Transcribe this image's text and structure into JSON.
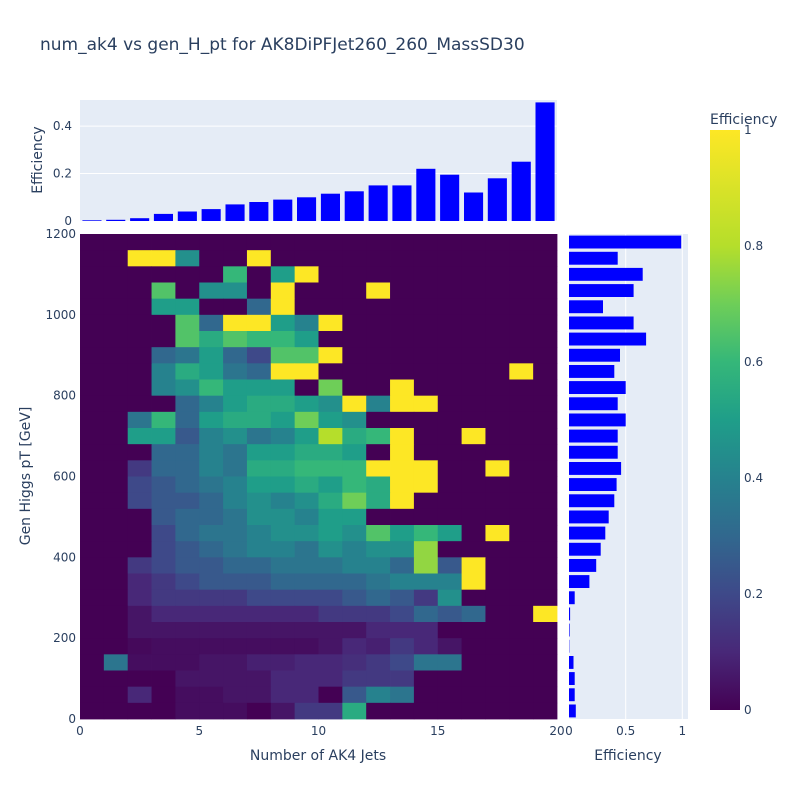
{
  "chart_data": [
    {
      "type": "heatmap",
      "title": "num_ak4 vs gen_H_pt for AK8DiPFJet260_260_MassSD30",
      "xlabel": "Number of AK4 Jets",
      "ylabel": "Gen Higgs pT [GeV]",
      "x_ticks": [
        "0",
        "5",
        "10",
        "15",
        "20"
      ],
      "y_ticks": [
        "0",
        "200",
        "400",
        "600",
        "800",
        "1000",
        "1200"
      ],
      "x_range": [
        0,
        20
      ],
      "y_range": [
        0,
        1200
      ],
      "colorscale": "Viridis",
      "colorbar": {
        "title": "Efficiency",
        "ticks": [
          "0",
          "0.2",
          "0.4",
          "0.6",
          "0.8",
          "1"
        ],
        "range": [
          0,
          1
        ]
      },
      "x_bin_edges": [
        0,
        20
      ],
      "x_bins": 20,
      "y_bin_edges": [
        0,
        1200
      ],
      "y_bins": 30,
      "z_rows_from_top": [
        [
          0,
          0,
          0,
          0,
          0,
          0,
          0,
          0,
          0,
          0,
          0,
          0,
          0,
          0,
          0,
          0,
          0,
          0,
          0,
          0
        ],
        [
          0,
          0,
          1,
          1,
          0.45,
          0,
          0,
          1,
          0,
          0,
          0,
          0,
          0,
          0,
          0,
          0,
          0,
          0,
          0,
          0
        ],
        [
          0,
          0,
          0,
          0,
          0,
          0,
          0.6,
          0,
          0.5,
          1,
          0,
          0,
          0,
          0,
          0,
          0,
          0,
          0,
          0,
          0
        ],
        [
          0,
          0,
          0,
          0.65,
          0,
          0.45,
          0.45,
          0,
          1,
          0,
          0,
          0,
          1,
          0,
          0,
          0,
          0,
          0,
          0,
          0
        ],
        [
          0,
          0,
          0,
          0.5,
          0.5,
          0,
          0,
          0.3,
          1,
          0,
          0,
          0,
          0,
          0,
          0,
          0,
          0,
          0,
          0,
          0
        ],
        [
          0,
          0,
          0,
          0,
          0.65,
          0.3,
          1,
          1,
          0.5,
          0.4,
          1,
          0,
          0,
          0,
          0,
          0,
          0,
          0,
          0,
          0
        ],
        [
          0,
          0,
          0,
          0,
          0.65,
          0.55,
          0.65,
          0.6,
          0.6,
          0.5,
          0,
          0,
          0,
          0,
          0,
          0,
          0,
          0,
          0,
          0
        ],
        [
          0,
          0,
          0,
          0.3,
          0.35,
          0.5,
          0.3,
          0.2,
          0.65,
          0.65,
          1,
          0,
          0,
          0,
          0,
          0,
          0,
          0,
          0,
          0
        ],
        [
          0,
          0,
          0,
          0.4,
          0.55,
          0.5,
          0.35,
          0.3,
          1,
          1,
          0,
          0,
          0,
          0,
          0,
          0,
          0,
          0,
          1,
          0
        ],
        [
          0,
          0,
          0,
          0.4,
          0.45,
          0.6,
          0.5,
          0.5,
          0.5,
          0,
          0.7,
          0,
          0,
          1,
          0,
          0,
          0,
          0,
          0,
          0
        ],
        [
          0,
          0,
          0,
          0,
          0.3,
          0.4,
          0.5,
          0.55,
          0.55,
          0.5,
          0.45,
          1,
          0.4,
          1,
          1,
          0,
          0,
          0,
          0,
          0
        ],
        [
          0,
          0,
          0.35,
          0.6,
          0.3,
          0.5,
          0.55,
          0.55,
          0.5,
          0.7,
          0.5,
          0.45,
          0,
          0,
          0,
          0,
          0,
          0,
          0,
          0
        ],
        [
          0,
          0,
          0.5,
          0.5,
          0.25,
          0.4,
          0.45,
          0.35,
          0.4,
          0.5,
          0.8,
          0.55,
          0.6,
          1,
          0,
          0,
          1,
          0,
          0,
          0
        ],
        [
          0,
          0,
          0,
          0.3,
          0.3,
          0.4,
          0.35,
          0.5,
          0.5,
          0.55,
          0.55,
          0.5,
          0,
          1,
          0,
          0,
          0,
          0,
          0,
          0
        ],
        [
          0,
          0,
          0.15,
          0.3,
          0.3,
          0.4,
          0.35,
          0.55,
          0.55,
          0.6,
          0.6,
          0.6,
          1,
          1,
          1,
          0,
          0,
          1,
          0,
          0
        ],
        [
          0,
          0,
          0.2,
          0.25,
          0.3,
          0.35,
          0.4,
          0.5,
          0.5,
          0.55,
          0.5,
          0.6,
          0.55,
          1,
          1,
          0,
          0,
          0,
          0,
          0
        ],
        [
          0,
          0,
          0.2,
          0.25,
          0.25,
          0.3,
          0.4,
          0.45,
          0.4,
          0.45,
          0.55,
          0.7,
          0.55,
          1,
          0,
          0,
          0,
          0,
          0,
          0
        ],
        [
          0,
          0,
          0,
          0.25,
          0.3,
          0.3,
          0.35,
          0.45,
          0.45,
          0.4,
          0.5,
          0.5,
          0,
          0,
          0,
          0,
          0,
          0,
          0,
          0
        ],
        [
          0,
          0,
          0,
          0.2,
          0.3,
          0.35,
          0.35,
          0.4,
          0.45,
          0.45,
          0.5,
          0.45,
          0.65,
          0.5,
          0.6,
          0.5,
          0,
          1,
          0,
          0
        ],
        [
          0,
          0,
          0,
          0.2,
          0.25,
          0.3,
          0.35,
          0.4,
          0.4,
          0.35,
          0.45,
          0.4,
          0.45,
          0.45,
          0.75,
          0,
          0,
          0,
          0,
          0
        ],
        [
          0,
          0,
          0.15,
          0.2,
          0.25,
          0.25,
          0.3,
          0.3,
          0.35,
          0.35,
          0.35,
          0.4,
          0.4,
          0.3,
          0.75,
          0.25,
          1,
          0,
          0,
          0
        ],
        [
          0,
          0,
          0.1,
          0.15,
          0.2,
          0.25,
          0.25,
          0.25,
          0.3,
          0.3,
          0.3,
          0.3,
          0.35,
          0.4,
          0.4,
          0.4,
          1,
          0,
          0,
          0
        ],
        [
          0,
          0,
          0.1,
          0.15,
          0.15,
          0.15,
          0.15,
          0.2,
          0.2,
          0.2,
          0.2,
          0.25,
          0.3,
          0.25,
          0.15,
          0.45,
          0,
          0,
          0,
          0
        ],
        [
          0,
          0,
          0.05,
          0.1,
          0.1,
          0.1,
          0.1,
          0.1,
          0.1,
          0.1,
          0.15,
          0.15,
          0.15,
          0.2,
          0.3,
          0.25,
          0.3,
          0,
          0,
          1
        ],
        [
          0,
          0,
          0.05,
          0.05,
          0.05,
          0.05,
          0.05,
          0.05,
          0.05,
          0.05,
          0.05,
          0.05,
          0.1,
          0.1,
          0.1,
          0,
          0,
          0,
          0,
          0
        ],
        [
          0,
          0,
          0.02,
          0.03,
          0.03,
          0.03,
          0.03,
          0.03,
          0.03,
          0.03,
          0.05,
          0.1,
          0.08,
          0.15,
          0.1,
          0.05,
          0,
          0,
          0,
          0
        ],
        [
          0,
          0.35,
          0.03,
          0.03,
          0.03,
          0.05,
          0.05,
          0.08,
          0.08,
          0.1,
          0.1,
          0.12,
          0.15,
          0.2,
          0.35,
          0.35,
          0,
          0,
          0,
          0
        ],
        [
          0,
          0,
          0,
          0,
          0.05,
          0.05,
          0.05,
          0.05,
          0.1,
          0.1,
          0.1,
          0.15,
          0.15,
          0.15,
          0,
          0,
          0,
          0,
          0,
          0
        ],
        [
          0,
          0,
          0.1,
          0,
          0.03,
          0.03,
          0.05,
          0.05,
          0.1,
          0.1,
          0,
          0.25,
          0.4,
          0.35,
          0,
          0,
          0,
          0,
          0,
          0
        ],
        [
          0,
          0,
          0,
          0,
          0.03,
          0.03,
          0.03,
          0,
          0.05,
          0.15,
          0.15,
          0.55,
          0,
          0,
          0,
          0,
          0,
          0,
          0,
          0
        ]
      ]
    },
    {
      "type": "bar",
      "orientation": "vertical",
      "ylabel": "Efficiency",
      "y_ticks": [
        "0",
        "0.2",
        "0.4"
      ],
      "ylim": [
        0,
        0.51
      ],
      "color": "#0000ff",
      "x": [
        0.5,
        1.5,
        2.5,
        3.5,
        4.5,
        5.5,
        6.5,
        7.5,
        8.5,
        9.5,
        10.5,
        11.5,
        12.5,
        13.5,
        14.5,
        15.5,
        16.5,
        17.5,
        18.5,
        19.5
      ],
      "values": [
        0.003,
        0.005,
        0.012,
        0.03,
        0.04,
        0.05,
        0.07,
        0.08,
        0.09,
        0.1,
        0.115,
        0.125,
        0.15,
        0.15,
        0.22,
        0.195,
        0.12,
        0.18,
        0.25,
        0.5
      ]
    },
    {
      "type": "bar",
      "orientation": "horizontal",
      "xlabel": "Efficiency",
      "x_ticks": [
        "0",
        "0.5",
        "1"
      ],
      "xlim": [
        0,
        1.05
      ],
      "color": "#0000ff",
      "y_bin_edges": [
        0,
        1200
      ],
      "y_bins": 30,
      "values_from_top": [
        0.99,
        0.43,
        0.65,
        0.57,
        0.3,
        0.57,
        0.68,
        0.45,
        0.4,
        0.5,
        0.43,
        0.5,
        0.43,
        0.43,
        0.46,
        0.42,
        0.4,
        0.35,
        0.32,
        0.28,
        0.24,
        0.18,
        0.05,
        0.01,
        0.005,
        0.003,
        0.04,
        0.05,
        0.05,
        0.06
      ]
    }
  ]
}
